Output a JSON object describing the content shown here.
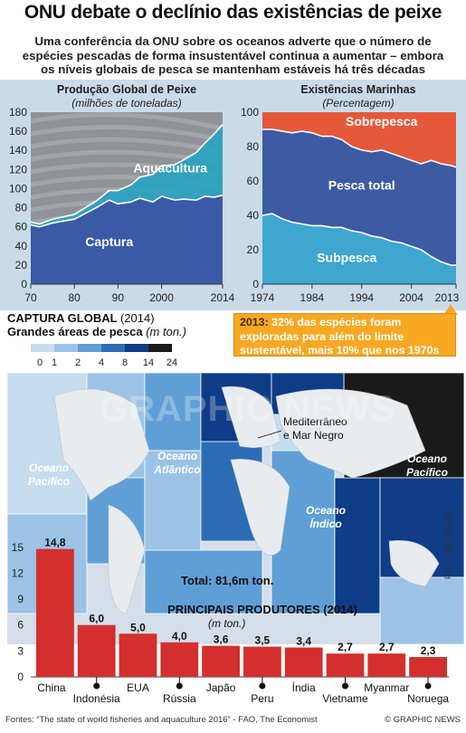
{
  "header": {
    "title": "ONU debate o declínio das existências de peixe",
    "subtitle_lines": [
      "Uma conferência da ONU sobre os oceanos adverte que o número de",
      "espécies pescadas de forma insustentável continua a aumentar  – embora",
      "os níveis globais de pesca se mantenham estáveis há três décadas"
    ]
  },
  "chart_data": [
    {
      "type": "area",
      "title": "Produção Global de Peixe",
      "subtitle": "(milhões de toneladas)",
      "x_ticks": [
        "70",
        "80",
        "90",
        "2000",
        "2014"
      ],
      "y_ticks": [
        "0",
        "20",
        "40",
        "60",
        "80",
        "100",
        "120",
        "140",
        "160",
        "180"
      ],
      "xlim": [
        1970,
        2014
      ],
      "ylim": [
        0,
        180
      ],
      "x": [
        1970,
        1972,
        1975,
        1980,
        1985,
        1988,
        1990,
        1993,
        1995,
        1998,
        2000,
        2003,
        2005,
        2008,
        2010,
        2012,
        2014
      ],
      "series": [
        {
          "name": "Captura",
          "values": [
            62,
            60,
            64,
            68,
            80,
            88,
            84,
            86,
            90,
            86,
            92,
            88,
            89,
            88,
            92,
            91,
            93
          ],
          "color": "#3a5aa8"
        },
        {
          "name": "Aquacultura",
          "values": [
            65,
            63,
            68,
            73,
            87,
            98,
            98,
            104,
            112,
            115,
            124,
            125,
            130,
            138,
            148,
            157,
            167
          ],
          "color": "#2aa3c0"
        }
      ]
    },
    {
      "type": "area",
      "title": "Existências Marinhas",
      "subtitle": "(Percentagem)",
      "x_ticks": [
        "1974",
        "1984",
        "1994",
        "2004",
        "2013"
      ],
      "y_ticks": [
        "0",
        "20",
        "40",
        "60",
        "80",
        "100"
      ],
      "xlim": [
        1974,
        2013
      ],
      "ylim": [
        0,
        100
      ],
      "x": [
        1974,
        1976,
        1978,
        1980,
        1982,
        1984,
        1986,
        1988,
        1990,
        1992,
        1994,
        1996,
        1998,
        2000,
        2002,
        2004,
        2006,
        2008,
        2010,
        2012,
        2013
      ],
      "series": [
        {
          "name": "Subpesca",
          "values": [
            40,
            41,
            38,
            36,
            35,
            34,
            34,
            33,
            33,
            31,
            30,
            28,
            27,
            25,
            24,
            22,
            20,
            16,
            13,
            11,
            11
          ]
        },
        {
          "name": "Pesca total",
          "values": [
            90,
            90,
            89,
            88,
            89,
            88,
            86,
            86,
            84,
            80,
            78,
            77,
            78,
            76,
            74,
            72,
            70,
            72,
            70,
            69,
            68
          ]
        },
        {
          "name": "Sobrepesca",
          "values": [
            100,
            100,
            100,
            100,
            100,
            100,
            100,
            100,
            100,
            100,
            100,
            100,
            100,
            100,
            100,
            100,
            100,
            100,
            100,
            100,
            100
          ]
        }
      ],
      "colors": {
        "Subpesca": "#3fa6d0",
        "Pesca total": "#3d5aa3",
        "Sobrepesca": "#e5593a"
      }
    },
    {
      "type": "bar",
      "title": "Principais Produtores",
      "subtitle": "(2014)",
      "unit": "(m ton.)",
      "categories": [
        "China",
        "Indonésia",
        "EUA",
        "Rússia",
        "Japão",
        "Peru",
        "Índia",
        "Vietname",
        "Myanmar",
        "Noruega"
      ],
      "values": [
        14.8,
        6.0,
        5.0,
        4.0,
        3.6,
        3.5,
        3.4,
        2.7,
        2.7,
        2.3
      ],
      "value_labels": [
        "14,8",
        "6,0",
        "5,0",
        "4,0",
        "3,6",
        "3,5",
        "3,4",
        "2,7",
        "2,7",
        "2,3"
      ],
      "y_ticks": [
        "0",
        "3",
        "6",
        "9",
        "12",
        "15"
      ],
      "ylim": [
        0,
        15.5
      ],
      "color": "#d32f2f"
    }
  ],
  "note": {
    "year": "2013:",
    "text": " 32% das espécies foram exploradas para além do limite sustentável, mais 10% que nos 1970s"
  },
  "map": {
    "heading": "Captura Global",
    "heading_year": "(2014)",
    "subheading": "Grandes áreas de pesca",
    "unit": "(m ton.)",
    "legend_ticks": [
      "0",
      "1",
      "2",
      "4",
      "8",
      "14",
      "24"
    ],
    "legend_colors": [
      "#c6dcef",
      "#9cc3e6",
      "#5f9fd6",
      "#2c6cb5",
      "#0e3c87",
      "#1a1a1a"
    ],
    "labels": {
      "pacific_west": "Oceano Pacífico",
      "atlantic": "Oceano Atlântico",
      "med": "Mediterrâneo e Mar Negro",
      "indian": "Oceano Índico",
      "pacific_east": "Oceano Pacífico"
    },
    "total": "Total: 81,6m ton."
  },
  "footer": {
    "sources": "Fontes: “The state of world fisheries and aquaculture 2016” - FAO, The Economist",
    "brand": "© GRAPHIC NEWS",
    "photo": "Foto: Getty Images",
    "watermark": "GRAPHIC NEWS"
  }
}
